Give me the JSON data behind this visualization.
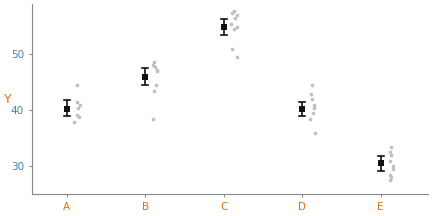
{
  "categories": [
    "A",
    "B",
    "C",
    "D",
    "E"
  ],
  "cat_x": [
    1,
    2,
    3,
    4,
    5
  ],
  "means": [
    40.3,
    46.0,
    55.0,
    40.3,
    30.5
  ],
  "ci_low": [
    39.0,
    44.5,
    53.5,
    39.0,
    29.2
  ],
  "ci_high": [
    41.8,
    47.5,
    56.3,
    41.5,
    31.8
  ],
  "jitter_data": {
    "A": [
      38.0,
      38.8,
      39.2,
      40.5,
      41.0,
      41.5,
      44.5
    ],
    "B": [
      38.5,
      43.5,
      44.5,
      47.0,
      47.3,
      47.8,
      48.2,
      48.7
    ],
    "C": [
      49.5,
      51.0,
      54.5,
      55.0,
      55.5,
      56.5,
      57.0,
      57.5,
      57.8
    ],
    "D": [
      36.0,
      38.5,
      39.5,
      40.5,
      41.0,
      42.0,
      43.0,
      44.5
    ],
    "E": [
      27.5,
      28.0,
      28.5,
      29.5,
      30.0,
      31.0,
      32.0,
      32.5,
      33.5
    ]
  },
  "dot_color": "#c0c0c0",
  "mean_color": "#111111",
  "ci_color": "#111111",
  "ylabel": "Y",
  "tick_color_orange": "#e07000",
  "tick_color_blue": "#4682b4",
  "ylim": [
    25,
    59
  ],
  "yticks": [
    30,
    40,
    50
  ],
  "background_color": "#ffffff",
  "spine_color": "#888888",
  "figsize": [
    4.32,
    2.16
  ],
  "dpi": 100
}
